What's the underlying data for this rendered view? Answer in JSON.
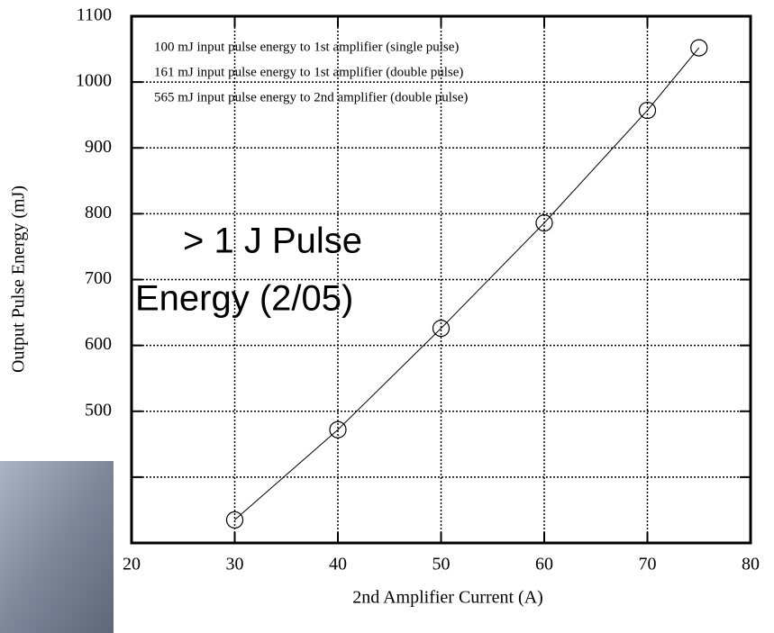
{
  "chart_data": {
    "type": "line",
    "xlabel": "2nd Amplifier Current (A)",
    "ylabel": "Output Pulse Energy (mJ)",
    "legend_lines": [
      "100 mJ input pulse energy to 1st amplifier (single pulse)",
      "161 mJ input pulse energy to 1st amplifier (double pulse)",
      "565 mJ input pulse energy to 2nd amplifier (double pulse)"
    ],
    "annotations": [
      "> 1 J Pulse",
      "Energy (2/05)"
    ],
    "x": [
      30,
      40,
      50,
      60,
      70,
      75
    ],
    "values": [
      335,
      472,
      626,
      786,
      957,
      1052
    ],
    "color": "#000000",
    "xlim": [
      20,
      80
    ],
    "xticks": [
      20,
      30,
      40,
      50,
      60,
      70,
      80
    ],
    "ylim": [
      300,
      1100
    ],
    "yticks": [
      {
        "value": 400,
        "label": null
      },
      500,
      600,
      700,
      800,
      900,
      1000,
      1100
    ],
    "grid": true
  }
}
